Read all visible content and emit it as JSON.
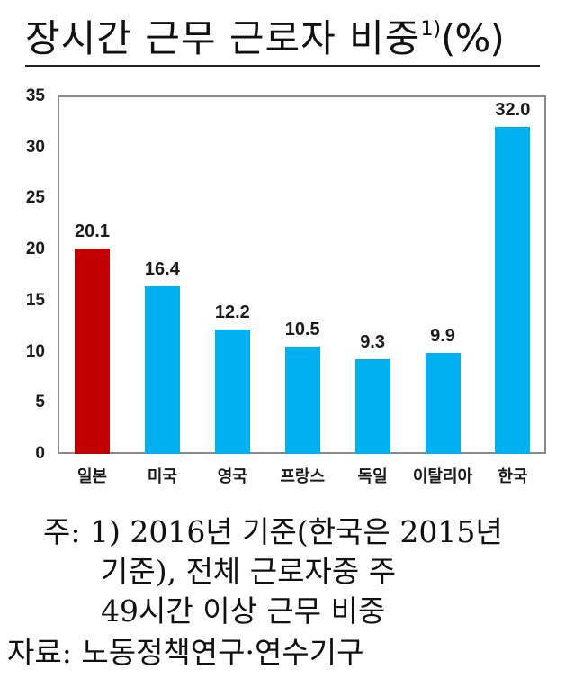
{
  "title": {
    "main": "장시간 근무 근로자 비중",
    "superscript": "1)",
    "unit": "(%)"
  },
  "colors": {
    "highlight": "#C00000",
    "default": "#00B0F0",
    "axis": "#8a8a8a"
  },
  "chart_data": {
    "type": "bar",
    "title": "장시간 근무 근로자 비중1)(%)",
    "xlabel": "",
    "ylabel": "%",
    "ylim": [
      0,
      35
    ],
    "yticks": [
      0,
      5,
      10,
      15,
      20,
      25,
      30,
      35
    ],
    "grid": false,
    "legend": null,
    "categories": [
      "일본",
      "미국",
      "영국",
      "프랑스",
      "독일",
      "이탈리아",
      "한국"
    ],
    "values": [
      20.1,
      16.4,
      12.2,
      10.5,
      9.3,
      9.9,
      32.0
    ],
    "value_labels": [
      "20.1",
      "16.4",
      "12.2",
      "10.5",
      "9.3",
      "9.9",
      "32.0"
    ],
    "bar_colors": [
      "#C00000",
      "#00B0F0",
      "#00B0F0",
      "#00B0F0",
      "#00B0F0",
      "#00B0F0",
      "#00B0F0"
    ]
  },
  "notes": {
    "line1_prefix": "주:",
    "line1": "1) 2016년 기준(한국은 2015년",
    "line2": "기준), 전체 근로자중 주",
    "line3": "49시간 이상 근무 비중",
    "source_prefix": "자료:",
    "source": "노동정책연구·연수기구"
  }
}
